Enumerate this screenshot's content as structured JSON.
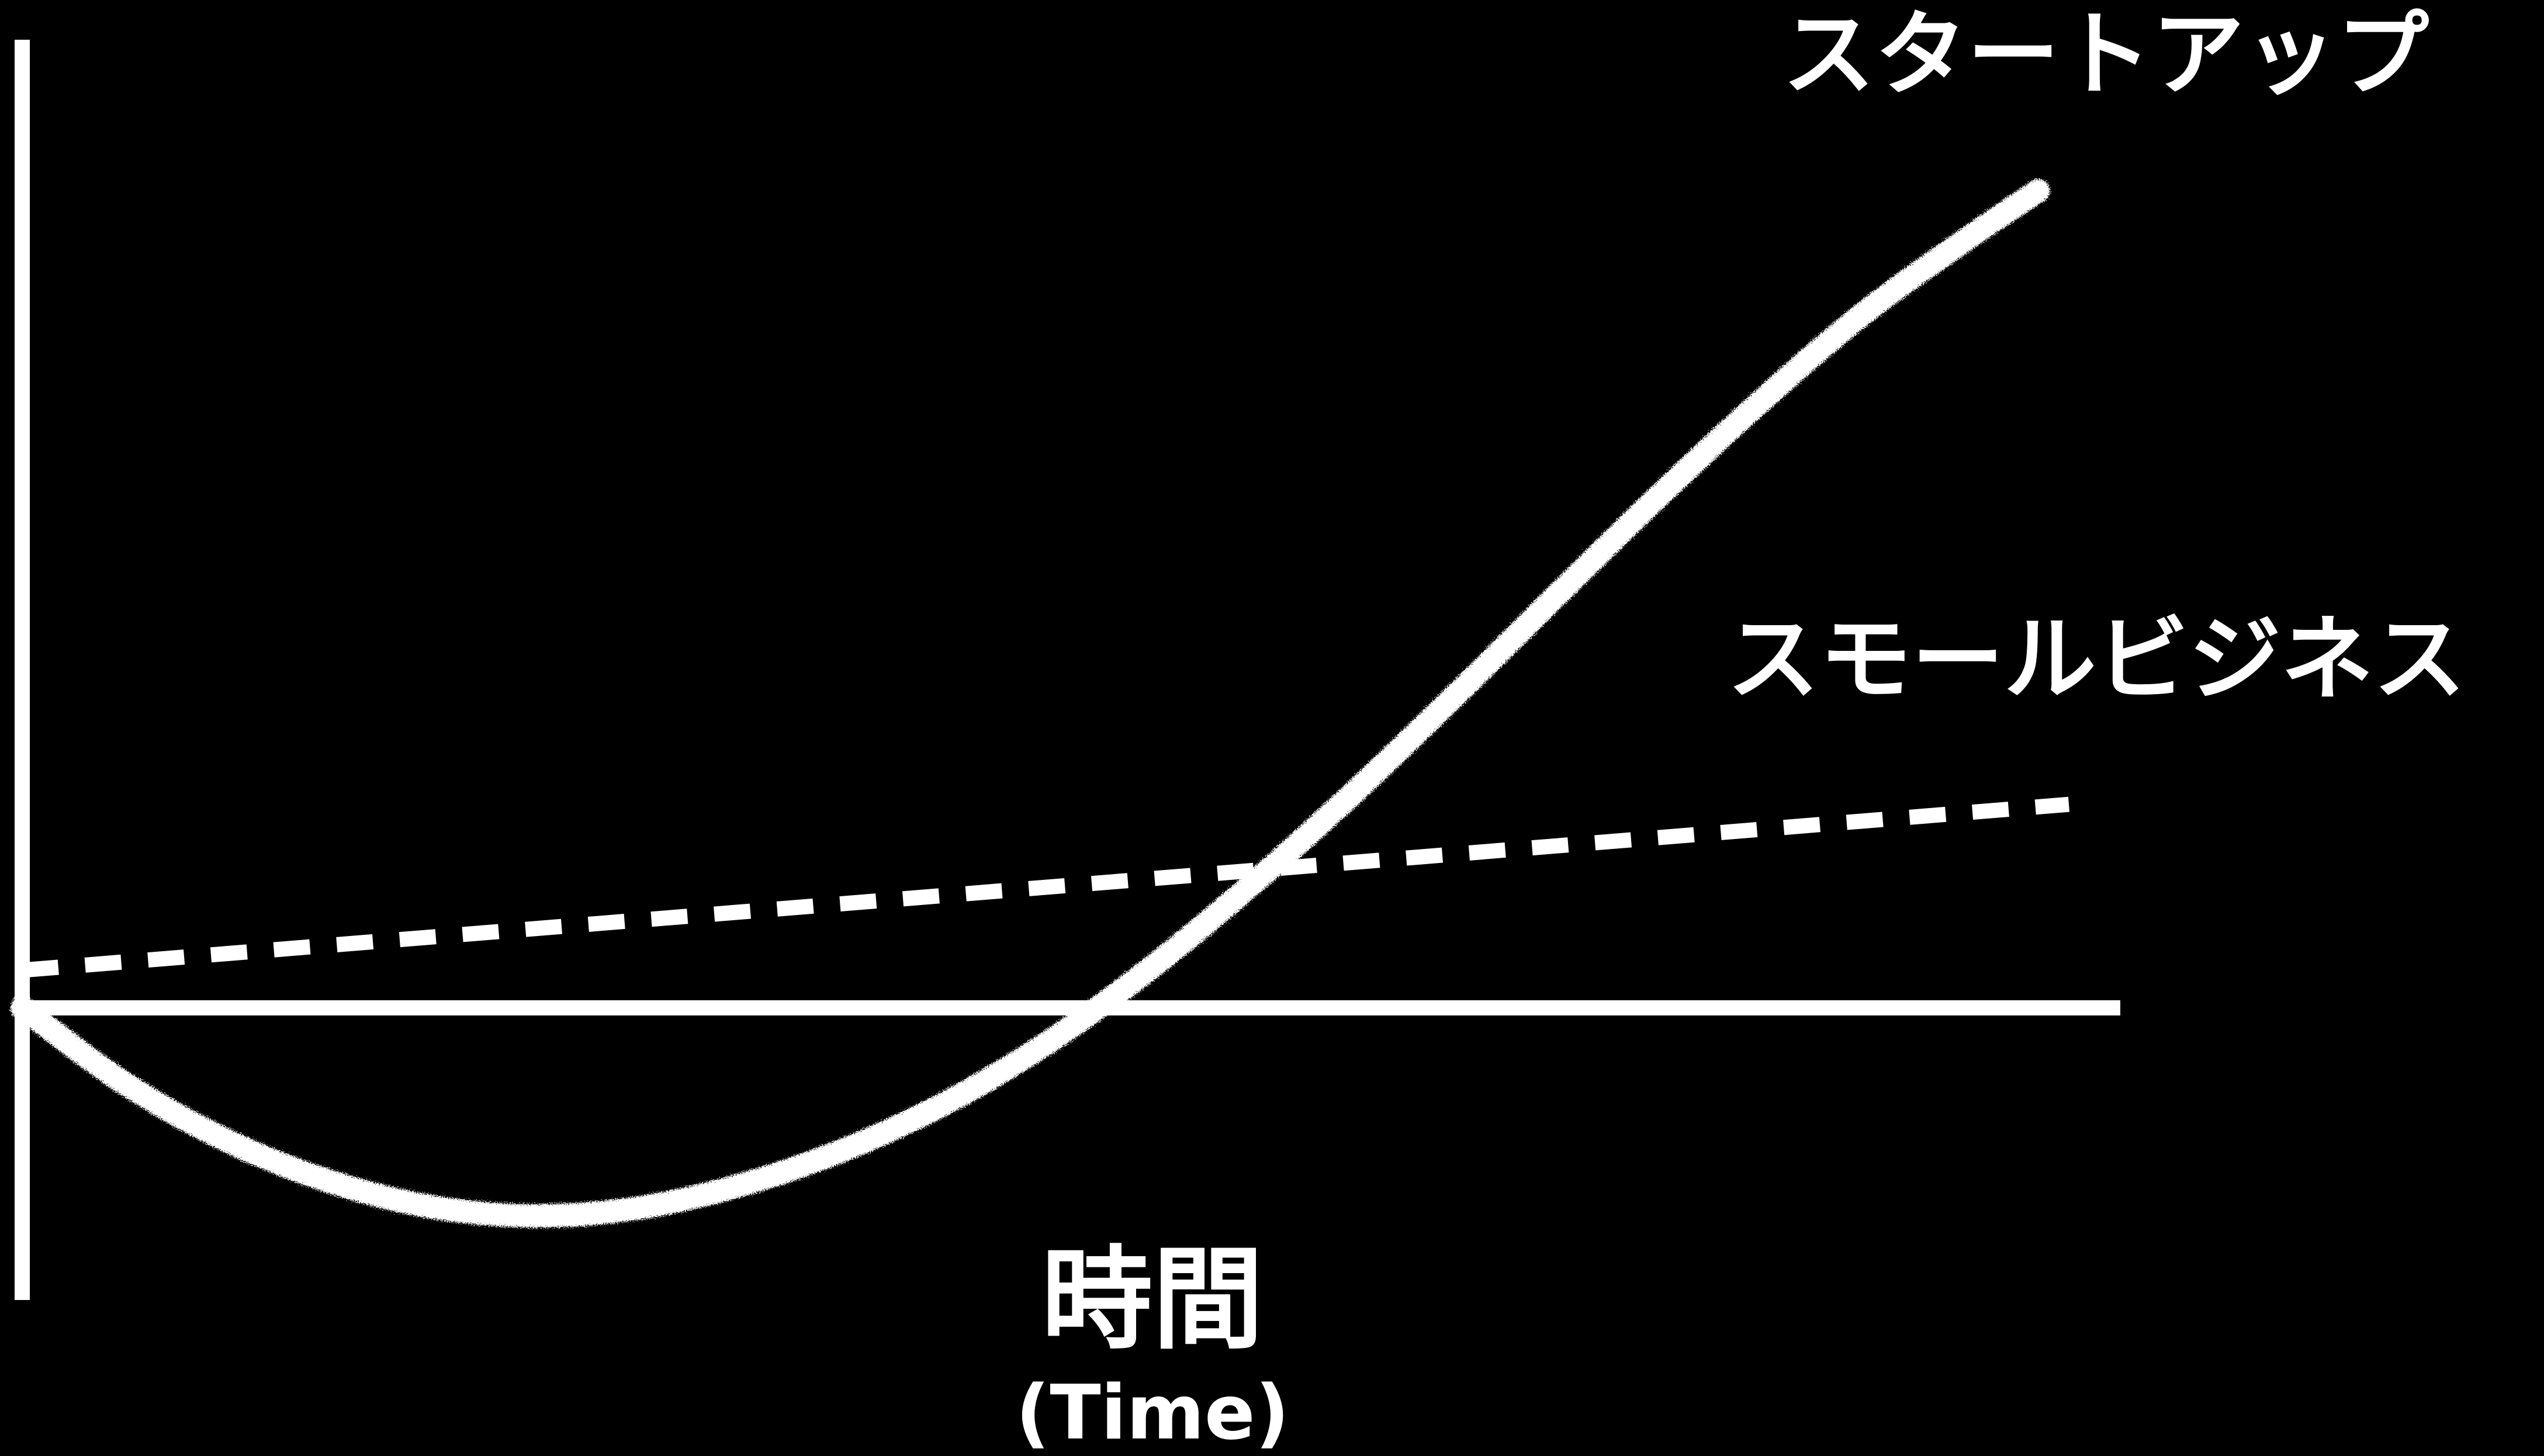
{
  "chart_data": {
    "type": "line",
    "title": "",
    "xlabel": "時間",
    "xlabel_sub": "(Time)",
    "ylabel": "",
    "background_color": "#000000",
    "foreground_color": "#ffffff",
    "grid": false,
    "x_ticks": false,
    "y_ticks": false,
    "xlim": [
      0,
      10
    ],
    "ylim": [
      -1.5,
      5
    ],
    "series": [
      {
        "name": "スタートアップ",
        "style": "chalk-solid",
        "color": "#ffffff",
        "x": [
          0,
          0.5,
          1,
          1.5,
          2,
          2.5,
          3,
          3.5,
          4,
          4.5,
          5,
          5.5,
          6,
          6.5,
          7,
          7.5,
          8,
          8.5,
          9,
          9.5,
          9.85
        ],
        "y": [
          0,
          -0.5,
          -0.88,
          -1.15,
          -1.32,
          -1.38,
          -1.33,
          -1.18,
          -0.95,
          -0.64,
          -0.24,
          0.25,
          0.81,
          1.42,
          2.07,
          2.74,
          3.4,
          4.03,
          4.61,
          5.1,
          5.42
        ]
      },
      {
        "name": "スモールビジネス",
        "style": "dashed",
        "color": "#ffffff",
        "x": [
          0,
          10
        ],
        "y": [
          0.25,
          1.35
        ]
      }
    ]
  }
}
